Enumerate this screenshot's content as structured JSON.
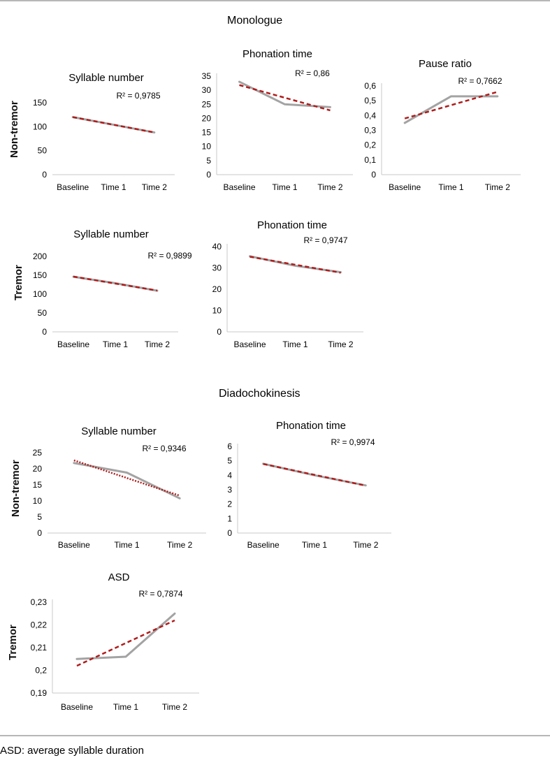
{
  "sections": {
    "monologue": "Monologue",
    "diadochokinesis": "Diadochokinesis"
  },
  "row_labels": {
    "non_tremor": "Non-tremor",
    "tremor": "Tremor"
  },
  "footnote": "ASD: average syllable duration",
  "colors": {
    "data_line": "#a3a3a3",
    "trend_line": "#b01c1c"
  },
  "chart_data": [
    {
      "id": "mono_nt_syll",
      "type": "line",
      "title": "Syllable number",
      "r2": "R² = 0,9785",
      "categories": [
        "Baseline",
        "Time 1",
        "Time 2"
      ],
      "values": [
        120,
        104,
        88
      ],
      "ylim": [
        0,
        150
      ],
      "yticks": [
        "0",
        "50",
        "100",
        "150"
      ],
      "trend": "dashed"
    },
    {
      "id": "mono_nt_phon",
      "type": "line",
      "title": "Phonation time",
      "r2": "R² = 0,86",
      "categories": [
        "Baseline",
        "Time 1",
        "Time 2"
      ],
      "values": [
        33,
        25,
        24
      ],
      "ylim": [
        0,
        35
      ],
      "yticks": [
        "0",
        "5",
        "10",
        "15",
        "20",
        "25",
        "30",
        "35"
      ],
      "trend": "dashed"
    },
    {
      "id": "mono_nt_pause",
      "type": "line",
      "title": "Pause ratio",
      "r2": "R² = 0,7662",
      "categories": [
        "Baseline",
        "Time 1",
        "Time 2"
      ],
      "values": [
        0.35,
        0.53,
        0.53
      ],
      "ylim": [
        0,
        0.6
      ],
      "yticks": [
        "0",
        "0,1",
        "0,2",
        "0,3",
        "0,4",
        "0,5",
        "0,6"
      ],
      "trend": "dashed"
    },
    {
      "id": "mono_t_syll",
      "type": "line",
      "title": "Syllable number",
      "r2": "R² = 0,9899",
      "categories": [
        "Baseline",
        "Time 1",
        "Time 2"
      ],
      "values": [
        146,
        129,
        109
      ],
      "ylim": [
        0,
        200
      ],
      "yticks": [
        "0",
        "50",
        "100",
        "150",
        "200"
      ],
      "trend": "dashed"
    },
    {
      "id": "mono_t_phon",
      "type": "line",
      "title": "Phonation time",
      "r2": "R² = 0,9747",
      "categories": [
        "Baseline",
        "Time 1",
        "Time 2"
      ],
      "values": [
        35.5,
        31,
        28
      ],
      "ylim": [
        0,
        40
      ],
      "yticks": [
        "0",
        "10",
        "20",
        "30",
        "40"
      ],
      "trend": "dashed"
    },
    {
      "id": "ddk_nt_syll",
      "type": "line",
      "title": "Syllable number",
      "r2": "R² = 0,9346",
      "categories": [
        "Baseline",
        "Time 1",
        "Time 2"
      ],
      "values": [
        21.8,
        18.8,
        10.8
      ],
      "ylim": [
        0,
        25
      ],
      "yticks": [
        "0",
        "5",
        "10",
        "15",
        "20",
        "25"
      ],
      "trend": "dotted"
    },
    {
      "id": "ddk_nt_phon",
      "type": "line",
      "title": "Phonation time",
      "r2": "R² = 0,9974",
      "categories": [
        "Baseline",
        "Time 1",
        "Time 2"
      ],
      "values": [
        4.8,
        4.0,
        3.3
      ],
      "ylim": [
        0,
        6
      ],
      "yticks": [
        "0",
        "1",
        "2",
        "3",
        "4",
        "5",
        "6"
      ],
      "trend": "dashed"
    },
    {
      "id": "ddk_t_asd",
      "type": "line",
      "title": "ASD",
      "r2": "R² = 0,7874",
      "categories": [
        "Baseline",
        "Time 1",
        "Time 2"
      ],
      "values": [
        0.205,
        0.206,
        0.225
      ],
      "ylim": [
        0.19,
        0.23
      ],
      "yticks": [
        "0,19",
        "0,2",
        "0,21",
        "0,22",
        "0,23"
      ],
      "trend": "dashed"
    }
  ]
}
